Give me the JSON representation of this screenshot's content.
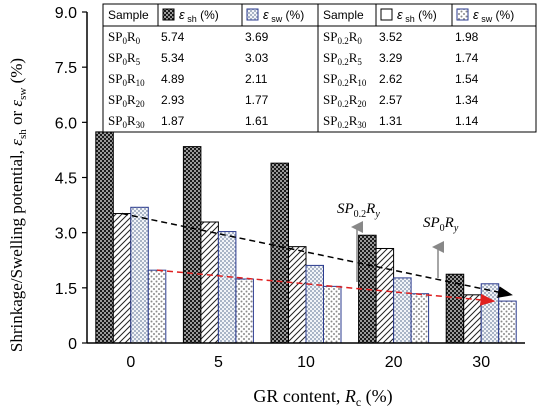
{
  "chart_data": {
    "type": "bar",
    "xlabel_main": "GR content, ",
    "xlabel_var": "R",
    "xlabel_sub": "c",
    "xlabel_unit": " (%)",
    "ylabel": "Shrinkage/Swelling potential, ε_sh or ε_sw (%)",
    "ylim": [
      0,
      9.0
    ],
    "yticks": [
      "0",
      "1.5",
      "3.0",
      "4.5",
      "6.0",
      "7.5",
      "9.0"
    ],
    "categories": [
      "0",
      "5",
      "10",
      "20",
      "30"
    ],
    "series": [
      {
        "name": "SP0Ry ε_sh",
        "values": [
          5.74,
          5.34,
          4.89,
          2.93,
          1.87
        ],
        "color": "#333333",
        "pattern": "checker-dark"
      },
      {
        "name": "SP0.2Ry ε_sh",
        "values": [
          3.52,
          3.29,
          2.62,
          2.57,
          1.31
        ],
        "color": "#ffffff",
        "pattern": "hatch"
      },
      {
        "name": "SP0Ry ε_sw",
        "values": [
          3.69,
          3.03,
          2.11,
          1.77,
          1.61
        ],
        "color": "#dbe3ee",
        "pattern": "checker-light"
      },
      {
        "name": "SP0.2Ry ε_sw",
        "values": [
          1.98,
          1.74,
          1.54,
          1.34,
          1.14
        ],
        "color": "#ffffff",
        "pattern": "dots"
      }
    ],
    "annotations": [
      {
        "text": "SP0.2Ry",
        "color": "#888888"
      },
      {
        "text": "SP0Ry",
        "color": "#888888"
      }
    ],
    "trendlines": [
      {
        "style": "dashed",
        "color": "#000000",
        "from": [
          0,
          3.52
        ],
        "to": [
          4,
          1.31
        ]
      },
      {
        "style": "dashed",
        "color": "#e02020",
        "from": [
          0,
          1.98
        ],
        "to": [
          4,
          1.14
        ]
      }
    ],
    "grid": false
  },
  "table": {
    "left": {
      "headers": [
        "Sample",
        "ε sh (%)",
        "ε sw (%)"
      ],
      "rows": [
        {
          "sample": "SP0R0",
          "sh": "5.74",
          "sw": "3.69"
        },
        {
          "sample": "SP0R5",
          "sh": "5.34",
          "sw": "3.03"
        },
        {
          "sample": "SP0R10",
          "sh": "4.89",
          "sw": "2.11"
        },
        {
          "sample": "SP0R20",
          "sh": "2.93",
          "sw": "1.77"
        },
        {
          "sample": "SP0R30",
          "sh": "1.87",
          "sw": "1.61"
        }
      ]
    },
    "right": {
      "headers": [
        "Sample",
        "ε sh (%)",
        "ε sw (%)"
      ],
      "rows": [
        {
          "sample": "SP0.2R0",
          "sh": "3.52",
          "sw": "1.98"
        },
        {
          "sample": "SP0.2R5",
          "sh": "3.29",
          "sw": "1.74"
        },
        {
          "sample": "SP0.2R10",
          "sh": "2.62",
          "sw": "1.54"
        },
        {
          "sample": "SP0.2R20",
          "sh": "2.57",
          "sw": "1.34"
        },
        {
          "sample": "SP0.2R30",
          "sh": "1.31",
          "sw": "1.14"
        }
      ]
    }
  }
}
